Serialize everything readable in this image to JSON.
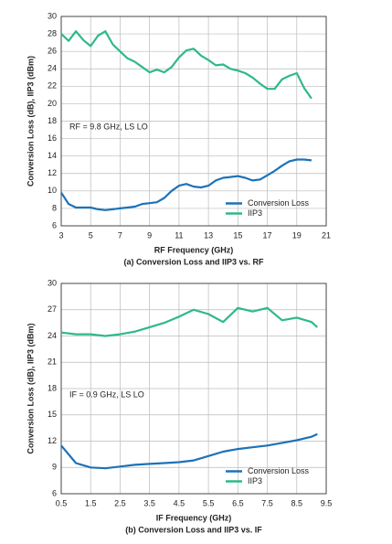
{
  "chart_data": [
    {
      "type": "line",
      "xlabel": "RF Frequency (GHz)",
      "ylabel": "Conversion Loss (dB), IIP3 (dBm)",
      "caption": "(a) Conversion Loss and IIP3 vs. RF",
      "annotation": "RF = 9.8 GHz, LS LO",
      "x": [
        3,
        3.5,
        4,
        4.5,
        5,
        5.5,
        6,
        6.5,
        7,
        7.5,
        8,
        8.5,
        9,
        9.5,
        10,
        10.5,
        11,
        11.5,
        12,
        12.5,
        13,
        13.5,
        14,
        14.5,
        15,
        15.5,
        16,
        16.5,
        17,
        17.5,
        18,
        18.5,
        19,
        19.5,
        20
      ],
      "series": [
        {
          "name": "Conversion Loss",
          "color": "#1c72b8",
          "values": [
            9.8,
            8.5,
            8.1,
            8.1,
            8.1,
            7.9,
            7.8,
            7.9,
            8.0,
            8.1,
            8.2,
            8.5,
            8.6,
            8.7,
            9.2,
            10.0,
            10.6,
            10.8,
            10.5,
            10.4,
            10.6,
            11.2,
            11.5,
            11.6,
            11.7,
            11.5,
            11.2,
            11.3,
            11.8,
            12.3,
            12.9,
            13.4,
            13.6,
            13.6,
            13.5
          ]
        },
        {
          "name": "IIP3",
          "color": "#2eb98a",
          "values": [
            28.0,
            27.2,
            28.3,
            27.3,
            26.6,
            27.8,
            28.3,
            26.8,
            26.0,
            25.2,
            24.8,
            24.2,
            23.6,
            23.9,
            23.6,
            24.2,
            25.3,
            26.1,
            26.3,
            25.5,
            25.0,
            24.4,
            24.5,
            24.0,
            23.8,
            23.5,
            23.0,
            22.3,
            21.7,
            21.7,
            22.8,
            23.2,
            23.5,
            21.8,
            20.6
          ]
        }
      ],
      "xlim": [
        3,
        21
      ],
      "xticks": [
        3,
        5,
        7,
        9,
        11,
        13,
        15,
        17,
        19,
        21
      ],
      "ylim": [
        6,
        30
      ],
      "yticks": [
        6,
        8,
        10,
        12,
        14,
        16,
        18,
        20,
        22,
        24,
        26,
        28,
        30
      ],
      "grid": true,
      "legend": "lower right"
    },
    {
      "type": "line",
      "xlabel": "IF Frequency (GHz)",
      "ylabel": "Conversion Loss (dB), IIP3 (dBm)",
      "caption": "(b) Conversion Loss and IIP3 vs. IF",
      "annotation": "IF = 0.9 GHz, LS LO",
      "x": [
        0.5,
        1,
        1.5,
        2,
        2.5,
        3,
        3.5,
        4,
        4.5,
        5,
        5.5,
        6,
        6.5,
        7,
        7.5,
        8,
        8.5,
        9,
        9.2
      ],
      "series": [
        {
          "name": "Conversion Loss",
          "color": "#1c72b8",
          "values": [
            11.5,
            9.5,
            9.0,
            8.9,
            9.1,
            9.3,
            9.4,
            9.5,
            9.6,
            9.8,
            10.3,
            10.8,
            11.1,
            11.3,
            11.5,
            11.8,
            12.1,
            12.5,
            12.8
          ]
        },
        {
          "name": "IIP3",
          "color": "#2eb98a",
          "values": [
            24.4,
            24.2,
            24.2,
            24.0,
            24.2,
            24.5,
            25.0,
            25.5,
            26.2,
            27.0,
            26.5,
            25.6,
            27.2,
            26.8,
            27.2,
            25.8,
            26.1,
            25.6,
            25.0
          ]
        }
      ],
      "xlim": [
        0.5,
        9.5
      ],
      "xticks": [
        0.5,
        1.5,
        2.5,
        3.5,
        4.5,
        5.5,
        6.5,
        7.5,
        8.5,
        9.5
      ],
      "ylim": [
        6,
        30
      ],
      "yticks": [
        6,
        9,
        12,
        15,
        18,
        21,
        24,
        27,
        30
      ],
      "grid": true,
      "legend": "lower right"
    }
  ]
}
